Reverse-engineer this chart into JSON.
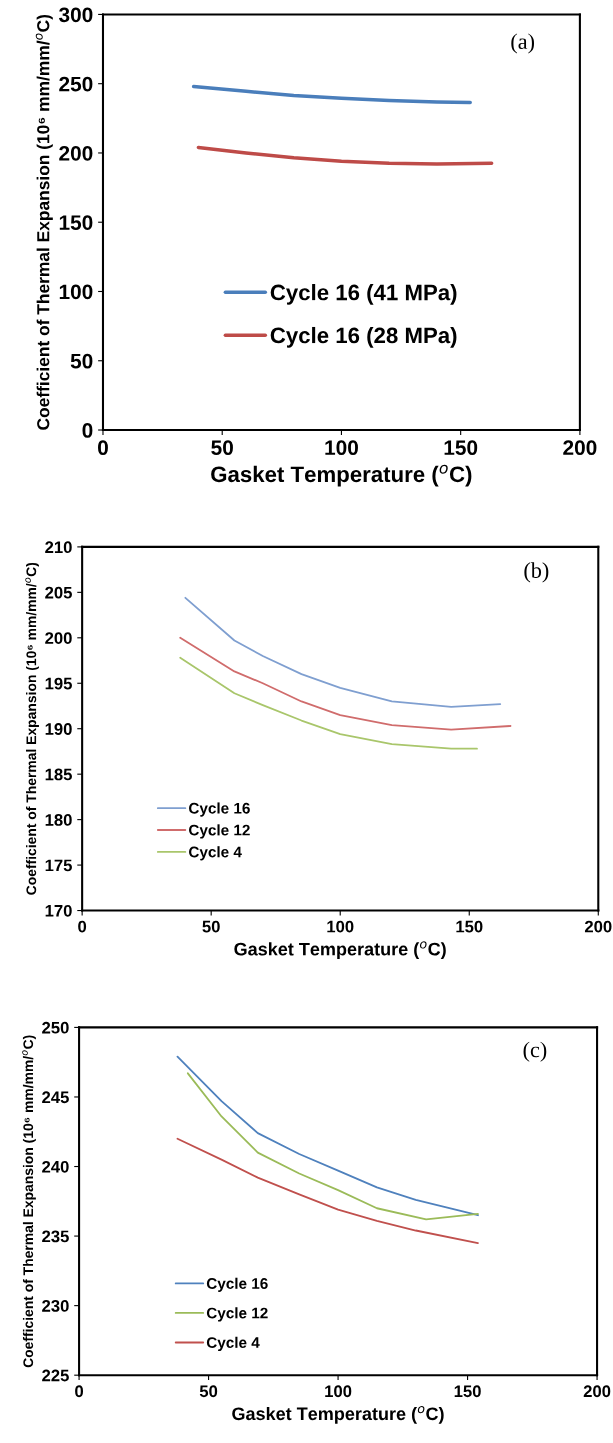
{
  "chart_data": [
    {
      "type": "line",
      "xlabel": "Gasket Temperature ($^{o}$C)",
      "ylabel": "Coefficient of Thermal Expansion (10⁶ mm/mm/$^{o}$C)",
      "annotations": [
        "(a)"
      ],
      "xlim": [
        0,
        200
      ],
      "xticks": [
        0,
        50,
        100,
        150,
        200
      ],
      "ylim": [
        0,
        300
      ],
      "yticks": [
        0,
        50,
        100,
        150,
        200,
        250,
        300
      ],
      "grid": false,
      "legend": "bottom",
      "marker": "none",
      "line_style": "solid",
      "series": [
        {
          "name": "Cycle 16 (41 MPa)",
          "color": "#4a7ebb",
          "x": [
            38,
            60,
            80,
            100,
            120,
            140,
            154
          ],
          "values": [
            248,
            244.5,
            241.5,
            239.5,
            237.8,
            236.8,
            236.5
          ]
        },
        {
          "name": "Cycle 16 (28 MPa)",
          "color": "#be4b48",
          "x": [
            40,
            60,
            80,
            100,
            120,
            140,
            163
          ],
          "values": [
            204,
            200,
            196.5,
            194,
            192.5,
            192,
            192.5
          ]
        }
      ]
    },
    {
      "type": "line",
      "xlabel": "Gasket Temperature ($^{o}$C)",
      "ylabel": "Coefficient of Thermal Expansion (10⁶ mm/mm/$^{o}$C)",
      "annotations": [
        "(b)"
      ],
      "xlim": [
        0,
        200
      ],
      "xticks": [
        0,
        50,
        100,
        150,
        200
      ],
      "ylim": [
        170,
        210
      ],
      "yticks": [
        170,
        175,
        180,
        185,
        190,
        195,
        200,
        205,
        210
      ],
      "grid": false,
      "legend": "bottom left",
      "marker": "none",
      "line_style": "solid",
      "series": [
        {
          "name": "Cycle 16",
          "color": "#7f9fd0",
          "x": [
            40,
            59,
            70,
            85,
            100,
            120,
            143,
            162
          ],
          "values": [
            204.4,
            199.7,
            198,
            196,
            194.5,
            193,
            192.4,
            192.7
          ]
        },
        {
          "name": "Cycle 12",
          "color": "#d06c6c",
          "x": [
            38,
            59,
            70,
            85,
            100,
            120,
            143,
            166
          ],
          "values": [
            200,
            196.3,
            195,
            193,
            191.5,
            190.4,
            189.9,
            190.3
          ]
        },
        {
          "name": "Cycle 4",
          "color": "#a9c66b",
          "x": [
            38,
            59,
            70,
            85,
            100,
            120,
            143,
            153
          ],
          "values": [
            197.8,
            193.9,
            192.6,
            190.9,
            189.4,
            188.3,
            187.8,
            187.8
          ]
        }
      ]
    },
    {
      "type": "line",
      "xlabel": "Gasket Temperature ($^{o}$C)",
      "ylabel": "Coefficient of Thermal Expansion (10⁶ mm/mm/$^{o}$C)",
      "annotations": [
        "(c)"
      ],
      "xlim": [
        0,
        200
      ],
      "xticks": [
        0,
        50,
        100,
        150,
        200
      ],
      "ylim": [
        225,
        250
      ],
      "yticks": [
        225,
        230,
        235,
        240,
        245,
        250
      ],
      "grid": false,
      "legend": "bottom left",
      "marker": "none",
      "line_style": "solid",
      "series": [
        {
          "name": "Cycle 16",
          "color": "#4f81bd",
          "x": [
            38,
            55,
            69,
            85,
            100,
            115,
            130,
            154
          ],
          "values": [
            247.9,
            244.7,
            242.4,
            240.9,
            239.7,
            238.5,
            237.6,
            236.5
          ]
        },
        {
          "name": "Cycle 12",
          "color": "#9bbb59",
          "x": [
            42,
            55,
            69,
            85,
            100,
            115,
            134,
            154
          ],
          "values": [
            246.7,
            243.6,
            241,
            239.5,
            238.3,
            237,
            236.2,
            236.6
          ]
        },
        {
          "name": "Cycle 4",
          "color": "#c0504d",
          "x": [
            38,
            55,
            69,
            85,
            100,
            115,
            130,
            154
          ],
          "values": [
            242,
            240.5,
            239.2,
            238,
            236.9,
            236.1,
            235.4,
            234.5
          ]
        }
      ]
    }
  ]
}
